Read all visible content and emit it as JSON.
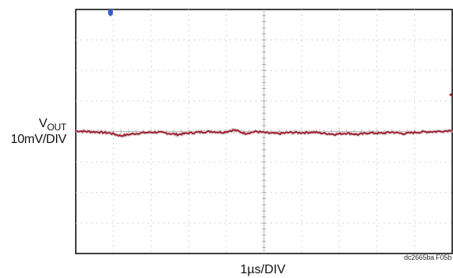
{
  "chart_data": {
    "type": "line",
    "ylabel_main": "V",
    "ylabel_sub": "OUT",
    "ylabel_scale": "10mV/DIV",
    "xlabel": "1µs/DIV",
    "figure_id": "dc2665ba F05b",
    "grid": true,
    "divisions": {
      "x": 10,
      "y": 8
    },
    "xlim": [
      0,
      10
    ],
    "ylim": [
      -4,
      4
    ],
    "x_unit": "div (1µs/DIV)",
    "y_unit": "div (10mV/DIV)",
    "series": [
      {
        "color": "#9b1b2c",
        "x": [
          0,
          0.3,
          0.6,
          0.9,
          1.2,
          1.5,
          1.8,
          2.1,
          2.4,
          2.7,
          3.0,
          3.3,
          3.6,
          3.9,
          4.2,
          4.5,
          4.8,
          5.1,
          5.4,
          5.7,
          6.0,
          6.3,
          6.6,
          6.9,
          7.2,
          7.5,
          7.8,
          8.1,
          8.4,
          8.7,
          9.0,
          9.3,
          9.6,
          10.0
        ],
        "y": [
          0.02,
          0.0,
          -0.02,
          -0.05,
          -0.14,
          -0.08,
          -0.04,
          -0.02,
          -0.05,
          -0.1,
          -0.05,
          -0.02,
          0.0,
          -0.03,
          0.05,
          -0.06,
          0.0,
          -0.05,
          -0.07,
          -0.03,
          -0.04,
          -0.02,
          -0.06,
          -0.09,
          -0.05,
          -0.1,
          -0.04,
          -0.06,
          -0.02,
          -0.07,
          -0.03,
          -0.01,
          0.0,
          0.04
        ]
      }
    ],
    "markers": {
      "trigger_color": "#3a5fc8",
      "level_marker_color": "#9b1b2c"
    }
  }
}
